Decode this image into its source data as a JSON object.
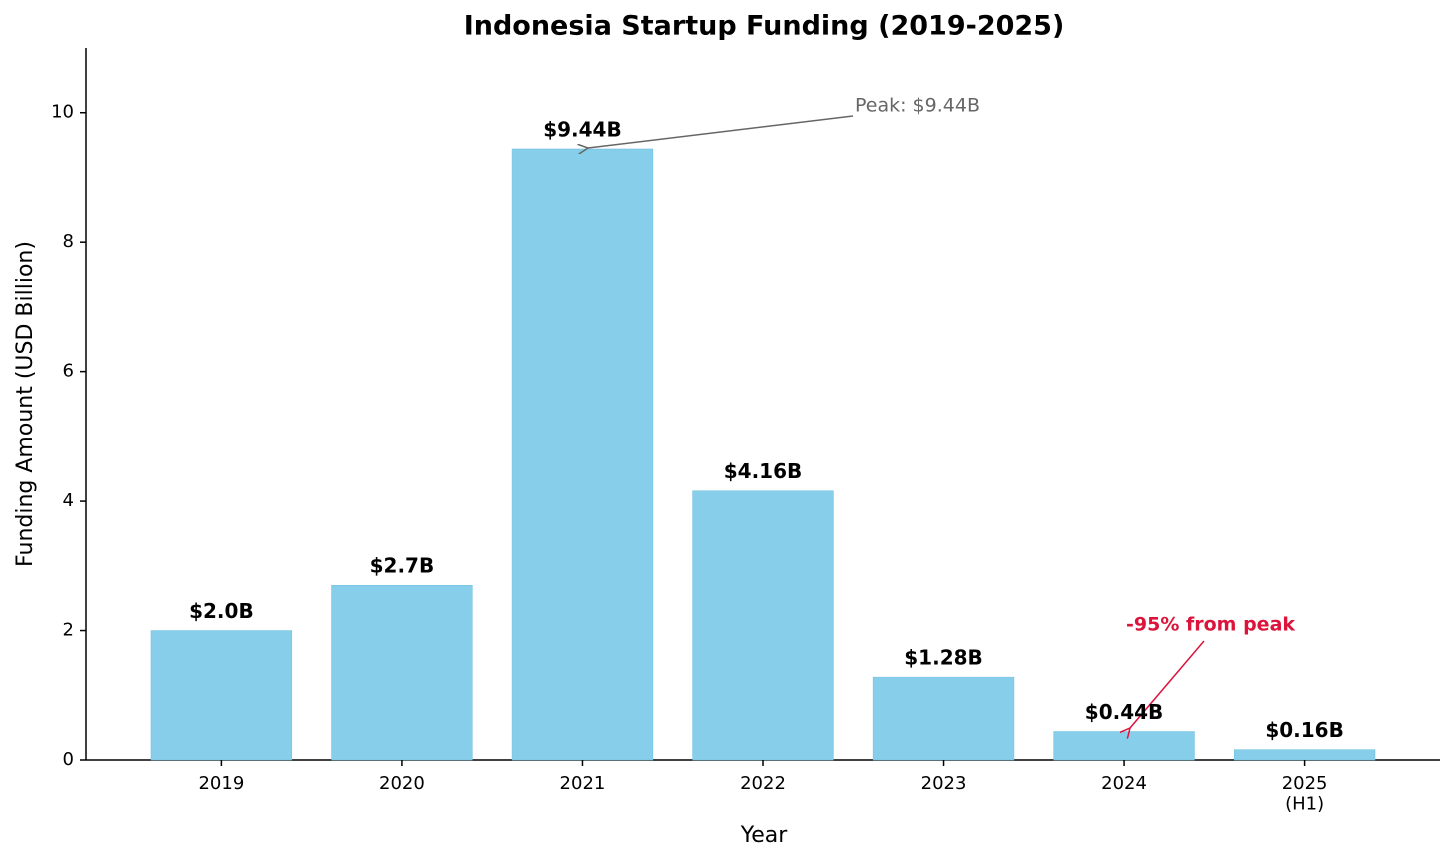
{
  "chart_data": {
    "type": "bar",
    "title": "Indonesia Startup Funding (2019-2025)",
    "x_label": "Year",
    "y_label": "Funding Amount (USD Billion)",
    "categories": [
      "2019",
      "2020",
      "2021",
      "2022",
      "2023",
      "2024",
      "2025\n(H1)"
    ],
    "values": [
      2.0,
      2.7,
      9.44,
      4.16,
      1.28,
      0.44,
      0.16
    ],
    "value_labels": [
      "$2.0B",
      "$2.7B",
      "$9.44B",
      "$4.16B",
      "$1.28B",
      "$0.44B",
      "$0.16B"
    ],
    "color": "#87ceeb",
    "ylim": [
      0,
      11
    ],
    "yticks": [
      0,
      2,
      4,
      6,
      8,
      10
    ],
    "grid": false,
    "annotations": [
      "Peak: $9.44B",
      "-95% from peak"
    ]
  }
}
